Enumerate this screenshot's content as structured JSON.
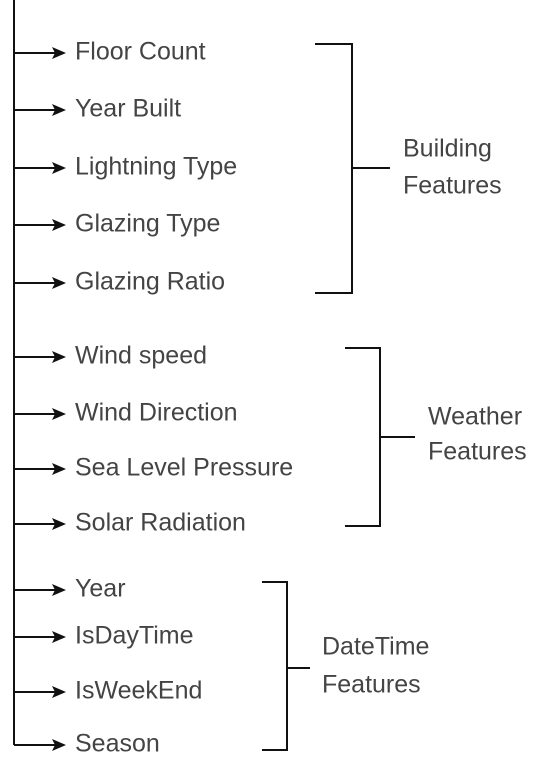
{
  "groups": [
    {
      "label": [
        "Building",
        "Features"
      ],
      "items": [
        "Floor Count",
        "Year Built",
        "Lightning Type",
        "Glazing Type",
        "Glazing Ratio"
      ]
    },
    {
      "label": [
        "Weather",
        "Features"
      ],
      "items": [
        "Wind speed",
        "Wind Direction",
        "Sea Level Pressure",
        "Solar Radiation"
      ]
    },
    {
      "label": [
        "DateTime",
        "Features"
      ],
      "items": [
        "Year",
        "IsDayTime",
        "IsWeekEnd",
        "Season"
      ]
    }
  ]
}
